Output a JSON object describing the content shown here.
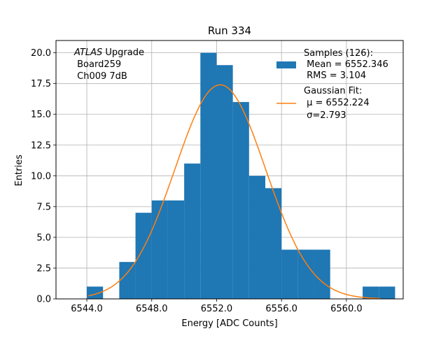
{
  "chart_data": {
    "type": "bar",
    "title": "Run 334",
    "xlabel": "Energy [ADC Counts]",
    "ylabel": "Entries",
    "xlim": [
      6542.1,
      6563.5
    ],
    "ylim": [
      0,
      21
    ],
    "grid": true,
    "x_ticks": [
      6544.0,
      6548.0,
      6552.0,
      6556.0,
      6560.0
    ],
    "x_tick_labels": [
      "6544.0",
      "6548.0",
      "6552.0",
      "6556.0",
      "6560.0"
    ],
    "y_ticks": [
      0,
      2.5,
      5,
      7.5,
      10,
      12.5,
      15,
      17.5,
      20
    ],
    "y_tick_labels": [
      "0.0",
      "2.5",
      "5.0",
      "7.5",
      "10.0",
      "12.5",
      "15.0",
      "17.5",
      "20.0"
    ],
    "bin_width": 1,
    "bins": [
      {
        "x_left": 6544.0,
        "count": 1
      },
      {
        "x_left": 6546.0,
        "count": 3
      },
      {
        "x_left": 6547.0,
        "count": 7
      },
      {
        "x_left": 6548.0,
        "count": 8
      },
      {
        "x_left": 6549.0,
        "count": 8
      },
      {
        "x_left": 6550.0,
        "count": 11
      },
      {
        "x_left": 6551.0,
        "count": 20
      },
      {
        "x_left": 6552.0,
        "count": 19
      },
      {
        "x_left": 6553.0,
        "count": 16
      },
      {
        "x_left": 6554.0,
        "count": 10
      },
      {
        "x_left": 6555.0,
        "count": 9
      },
      {
        "x_left": 6556.0,
        "count": 4
      },
      {
        "x_left": 6557.0,
        "count": 4
      },
      {
        "x_left": 6558.0,
        "count": 4
      },
      {
        "x_left": 6561.0,
        "count": 1
      },
      {
        "x_left": 6562.0,
        "count": 1
      }
    ],
    "fit": {
      "type": "gaussian",
      "mu": 6552.224,
      "sigma": 2.793,
      "amplitude": 17.4,
      "x_range": [
        6544.1,
        6562.1
      ]
    },
    "series_colors": {
      "histogram": "#1f77b4",
      "fit": "#ff7f0e"
    },
    "legend": {
      "placement": "top-right",
      "entries": [
        {
          "kind": "patch",
          "lines": [
            "Samples (126):",
            " Mean = 6552.346",
            " RMS = 3.104"
          ]
        },
        {
          "kind": "line",
          "lines": [
            "Gaussian Fit:",
            " μ = 6552.224",
            " σ=2.793"
          ]
        }
      ]
    },
    "annotation": {
      "placement": "top-left",
      "italic_word": "ATLAS",
      "first_line_rest": " Upgrade",
      "lines": [
        " Board259",
        " Ch009 7dB"
      ]
    }
  }
}
